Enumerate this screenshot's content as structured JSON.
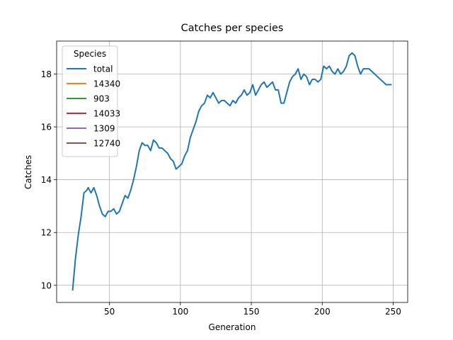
{
  "chart_data": {
    "type": "line",
    "title": "Catches per species",
    "x_label": "Generation",
    "y_label": "Catches",
    "legend_title": "Species",
    "legend": "upper left",
    "grid": true,
    "xlim": [
      12.75,
      260.25
    ],
    "ylim": [
      9.35,
      19.25
    ],
    "xticks": [
      50,
      100,
      150,
      200,
      250
    ],
    "yticks": [
      10,
      12,
      14,
      16,
      18
    ],
    "x": [
      24,
      26,
      28,
      30,
      32,
      34,
      35,
      37,
      39,
      41,
      43,
      45,
      47,
      49,
      51,
      53,
      55,
      57,
      59,
      61,
      63,
      65,
      67,
      69,
      71,
      73,
      75,
      77,
      79,
      81,
      83,
      85,
      87,
      89,
      91,
      93,
      95,
      97,
      99,
      101,
      103,
      105,
      107,
      109,
      111,
      113,
      115,
      117,
      119,
      121,
      123,
      125,
      127,
      129,
      131,
      133,
      135,
      137,
      139,
      141,
      143,
      145,
      147,
      149,
      151,
      153,
      155,
      157,
      159,
      161,
      163,
      165,
      167,
      169,
      171,
      173,
      175,
      177,
      179,
      181,
      183,
      185,
      187,
      189,
      191,
      193,
      195,
      197,
      199,
      201,
      203,
      205,
      207,
      209,
      211,
      213,
      215,
      217,
      219,
      221,
      223,
      225,
      227,
      229,
      231,
      233,
      235,
      237,
      239,
      241,
      243,
      245,
      247,
      249
    ],
    "series": [
      {
        "name": "total",
        "color": "#1f77b4",
        "values": [
          9.8,
          11.0,
          11.9,
          12.6,
          13.5,
          13.6,
          13.7,
          13.5,
          13.7,
          13.4,
          13.0,
          12.7,
          12.6,
          12.8,
          12.8,
          12.9,
          12.7,
          12.8,
          13.1,
          13.4,
          13.3,
          13.6,
          14.0,
          14.5,
          15.1,
          15.4,
          15.3,
          15.3,
          15.1,
          15.5,
          15.4,
          15.2,
          15.2,
          15.1,
          15.0,
          14.8,
          14.7,
          14.4,
          14.5,
          14.6,
          14.9,
          15.1,
          15.6,
          15.9,
          16.2,
          16.6,
          16.8,
          16.9,
          17.2,
          17.1,
          17.3,
          17.1,
          16.9,
          17.0,
          17.0,
          16.9,
          16.8,
          17.0,
          16.9,
          17.1,
          17.2,
          17.4,
          17.2,
          17.3,
          17.6,
          17.2,
          17.4,
          17.6,
          17.7,
          17.5,
          17.6,
          17.7,
          17.4,
          17.4,
          16.9,
          16.9,
          17.3,
          17.7,
          17.9,
          18.0,
          18.2,
          17.8,
          18.0,
          17.9,
          17.6,
          17.8,
          17.8,
          17.7,
          17.8,
          18.3,
          18.2,
          18.3,
          18.1,
          18.0,
          18.2,
          18.0,
          18.1,
          18.3,
          18.7,
          18.8,
          18.7,
          18.3,
          18.0,
          18.2,
          18.2,
          18.2,
          18.1,
          18.0,
          17.9,
          17.8,
          17.7,
          17.6,
          17.6,
          17.6
        ]
      },
      {
        "name": "14340",
        "color": "#ff7f0e",
        "values": [
          null,
          null,
          null,
          null,
          null,
          null,
          null,
          null,
          null,
          null,
          null,
          null,
          null,
          null,
          null,
          null,
          null,
          null,
          null,
          null,
          null,
          null,
          null,
          null,
          null,
          null,
          null,
          null,
          null,
          null,
          null,
          null,
          null,
          null,
          null,
          null,
          null,
          null,
          null,
          null,
          null,
          null,
          null,
          null,
          null,
          null,
          null,
          null,
          null,
          null,
          null,
          null,
          null,
          null,
          null,
          null,
          null,
          null,
          null,
          null,
          null,
          null,
          null,
          null,
          null,
          null,
          null,
          null,
          null,
          null,
          null,
          null,
          null,
          null,
          null,
          null,
          null,
          null,
          null,
          null,
          null,
          null,
          null,
          null,
          null,
          null,
          null,
          null,
          null,
          null,
          null,
          null,
          null,
          null,
          null,
          null,
          null,
          null,
          null,
          null,
          null,
          null,
          null,
          null,
          null,
          null,
          null,
          null,
          null,
          null,
          null,
          null,
          null,
          null
        ]
      },
      {
        "name": "903",
        "color": "#2ca02c",
        "values": [
          null,
          null,
          null,
          null,
          null,
          null,
          null,
          null,
          null,
          null,
          null,
          null,
          null,
          null,
          null,
          null,
          null,
          null,
          null,
          null,
          null,
          null,
          null,
          null,
          null,
          null,
          null,
          null,
          null,
          null,
          null,
          null,
          null,
          null,
          null,
          null,
          null,
          null,
          null,
          null,
          null,
          null,
          null,
          null,
          null,
          null,
          null,
          null,
          null,
          null,
          null,
          null,
          null,
          null,
          null,
          null,
          null,
          null,
          null,
          null,
          null,
          null,
          null,
          null,
          null,
          null,
          null,
          null,
          null,
          null,
          null,
          null,
          null,
          null,
          null,
          null,
          null,
          null,
          null,
          null,
          null,
          null,
          null,
          null,
          null,
          null,
          null,
          null,
          null,
          null,
          null,
          null,
          null,
          null,
          null,
          null,
          null,
          null,
          null,
          null,
          null,
          null,
          null,
          null,
          null,
          null,
          null,
          null,
          null,
          null,
          null,
          null,
          null,
          null
        ]
      },
      {
        "name": "14033",
        "color": "#d62728",
        "values": [
          null,
          null,
          null,
          null,
          null,
          null,
          null,
          null,
          null,
          null,
          null,
          null,
          null,
          null,
          null,
          null,
          null,
          null,
          null,
          null,
          null,
          null,
          null,
          null,
          null,
          null,
          null,
          null,
          null,
          null,
          null,
          null,
          null,
          null,
          null,
          null,
          null,
          null,
          null,
          null,
          null,
          null,
          null,
          null,
          null,
          null,
          null,
          null,
          null,
          null,
          null,
          null,
          null,
          null,
          null,
          null,
          null,
          null,
          null,
          null,
          null,
          null,
          null,
          null,
          null,
          null,
          null,
          null,
          null,
          null,
          null,
          null,
          null,
          null,
          null,
          null,
          null,
          null,
          null,
          null,
          null,
          null,
          null,
          null,
          null,
          null,
          null,
          null,
          null,
          null,
          null,
          null,
          null,
          null,
          null,
          null,
          null,
          null,
          null,
          null,
          null,
          null,
          null,
          null,
          null,
          null,
          null,
          null,
          null,
          null,
          null,
          null,
          null,
          null
        ]
      },
      {
        "name": "1309",
        "color": "#9467bd",
        "values": [
          null,
          null,
          null,
          null,
          null,
          null,
          null,
          null,
          null,
          null,
          null,
          null,
          null,
          null,
          null,
          null,
          null,
          null,
          null,
          null,
          null,
          null,
          null,
          null,
          null,
          null,
          null,
          null,
          null,
          null,
          null,
          null,
          null,
          null,
          null,
          null,
          null,
          null,
          null,
          null,
          null,
          null,
          null,
          null,
          null,
          null,
          null,
          null,
          null,
          null,
          null,
          null,
          null,
          null,
          null,
          null,
          null,
          null,
          null,
          null,
          null,
          null,
          null,
          null,
          null,
          null,
          null,
          null,
          null,
          null,
          null,
          null,
          null,
          null,
          null,
          null,
          null,
          null,
          null,
          null,
          null,
          null,
          null,
          null,
          null,
          null,
          null,
          null,
          null,
          null,
          null,
          null,
          null,
          null,
          null,
          null,
          null,
          null,
          null,
          null,
          null,
          null,
          null,
          null,
          null,
          null,
          null,
          null,
          null,
          null,
          null,
          null,
          null,
          null
        ]
      },
      {
        "name": "12740",
        "color": "#8c564b",
        "values": [
          null,
          null,
          null,
          null,
          null,
          null,
          null,
          null,
          null,
          null,
          null,
          null,
          null,
          null,
          null,
          null,
          null,
          null,
          null,
          null,
          null,
          null,
          null,
          null,
          null,
          null,
          null,
          null,
          null,
          null,
          null,
          null,
          null,
          null,
          null,
          null,
          null,
          null,
          null,
          null,
          null,
          null,
          null,
          null,
          null,
          null,
          null,
          null,
          null,
          null,
          null,
          null,
          null,
          null,
          null,
          null,
          null,
          null,
          null,
          null,
          null,
          null,
          null,
          null,
          null,
          null,
          null,
          null,
          null,
          null,
          null,
          null,
          null,
          null,
          null,
          null,
          null,
          null,
          null,
          null,
          null,
          null,
          null,
          null,
          null,
          null,
          null,
          null,
          null,
          null,
          null,
          null,
          null,
          null,
          null,
          null,
          null,
          null,
          null,
          null,
          null,
          null,
          null,
          null,
          null,
          null,
          null,
          null,
          null,
          null,
          null,
          null,
          null,
          null
        ]
      }
    ]
  }
}
